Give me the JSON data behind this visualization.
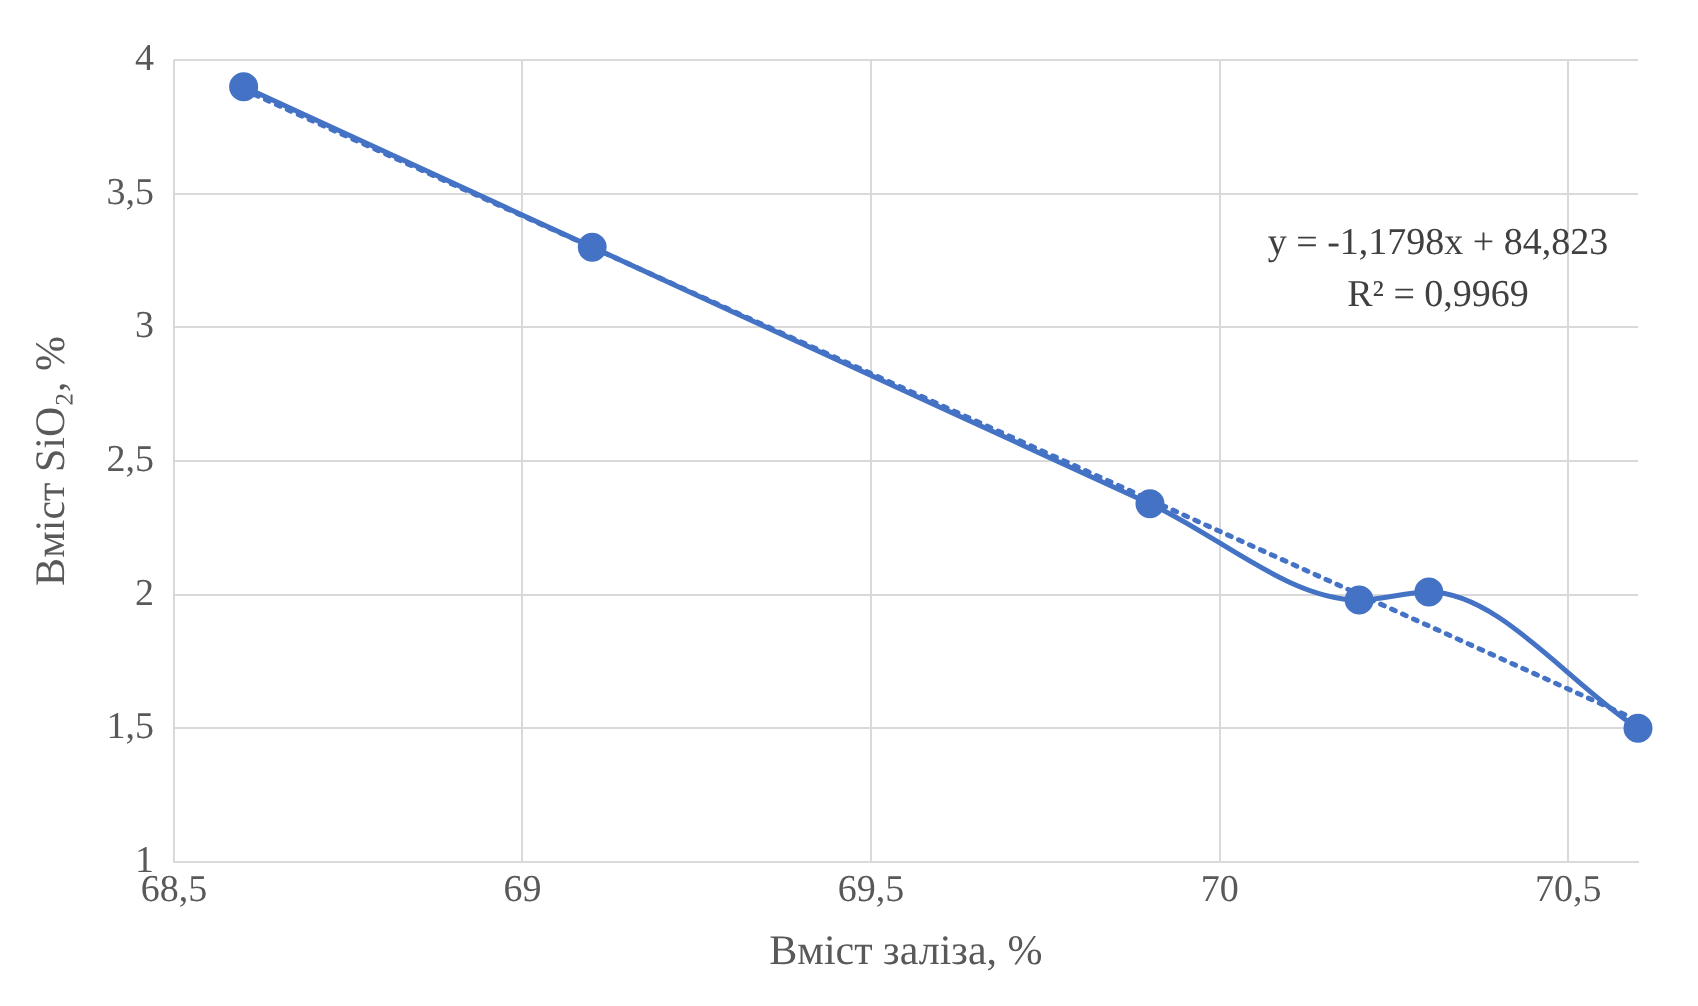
{
  "chart_data": {
    "type": "line",
    "xlabel": "Вміст заліза, %",
    "ylabel": "Вміст SiO₂, %",
    "x": [
      68.6,
      69.1,
      69.9,
      70.2,
      70.3,
      70.6
    ],
    "series": [
      {
        "type": "line",
        "color": "#4472c4",
        "values": [
          3.9,
          3.3,
          2.34,
          1.98,
          2.01,
          1.5
        ],
        "marker": "circle",
        "line_style": "solid"
      },
      {
        "type": "line",
        "color": "#4472c4",
        "x": [
          68.6,
          70.6
        ],
        "values": [
          3.889,
          1.529
        ],
        "marker": "none",
        "line_style": "dotted"
      }
    ],
    "xlim": [
      68.5,
      70.6
    ],
    "xticks": [
      {
        "value": 68.5,
        "label": "68,5"
      },
      69,
      {
        "value": 69.5,
        "label": "69,5"
      },
      70,
      {
        "value": 70.5,
        "label": "70,5"
      }
    ],
    "ylim": [
      1,
      4
    ],
    "yticks": [
      1,
      {
        "value": 1.5,
        "label": "1,5"
      },
      2,
      {
        "value": 2.5,
        "label": "2,5"
      },
      3,
      {
        "value": 3.5,
        "label": "3,5"
      },
      4
    ],
    "grid": true,
    "legend": false,
    "annotations": [
      "y = -1,1798x + 84,823",
      "R² = 0,9969"
    ]
  }
}
